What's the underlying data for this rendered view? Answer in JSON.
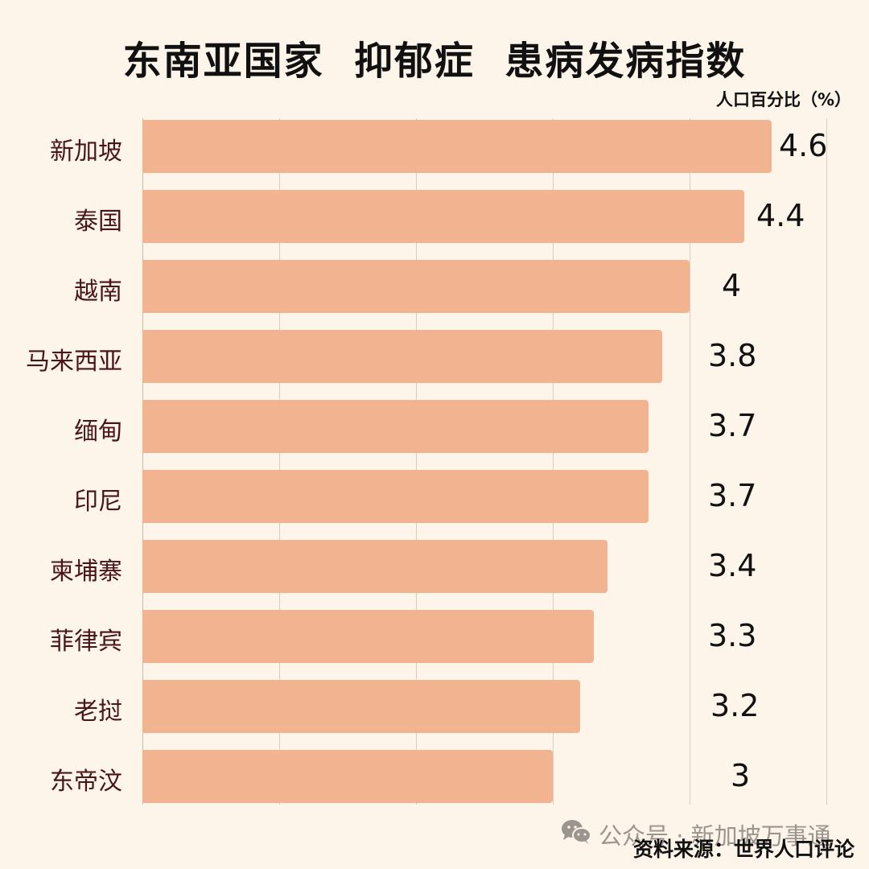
{
  "header": {
    "title": "东南亚国家  抑郁症  患病发病指数",
    "unit_label": "人口百分比（%）"
  },
  "footer": {
    "watermark": "公众号 · 新加坡万事通",
    "source": "资料来源：世界人口评论"
  },
  "chart_data": {
    "type": "bar",
    "orientation": "horizontal",
    "title": "东南亚国家  抑郁症  患病发病指数",
    "xlabel": "人口百分比（%）",
    "ylabel": "",
    "categories": [
      "新加坡",
      "泰国",
      "越南",
      "马来西亚",
      "缅甸",
      "印尼",
      "柬埔寨",
      "菲律宾",
      "老挝",
      "东帝汶"
    ],
    "values": [
      4.6,
      4.4,
      4,
      3.8,
      3.7,
      3.7,
      3.4,
      3.3,
      3.2,
      3
    ],
    "value_labels": [
      "4.6",
      "4.4",
      "4",
      "3.8",
      "3.7",
      "3.7",
      "3.4",
      "3.3",
      "3.2",
      "3"
    ],
    "xlim": [
      0,
      5
    ],
    "gridlines_x": [
      1,
      2,
      3,
      4,
      5
    ],
    "grid": true,
    "legend": false,
    "colors": {
      "bar": "#f2b490",
      "background": "#fdf4ea",
      "category_text": "#4a1518"
    }
  }
}
